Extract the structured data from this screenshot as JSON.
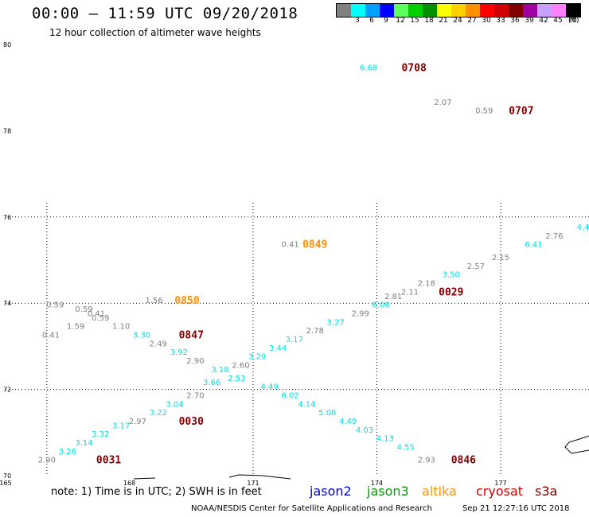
{
  "header": {
    "title": "00:00 – 11:59 UTC 09/20/2018",
    "subtitle": "12 hour collection of altimeter wave heights"
  },
  "legend": {
    "colors": [
      "#808080",
      "#00ffff",
      "#00a0ff",
      "#0000ff",
      "#60ff60",
      "#00d000",
      "#009000",
      "#ffff00",
      "#ffd000",
      "#ff9000",
      "#ff0000",
      "#d00000",
      "#800000",
      "#a000a0",
      "#c8a0ff",
      "#ff80ff",
      "#000000"
    ],
    "labels": [
      "3",
      "6",
      "9",
      "12",
      "15",
      "18",
      "21",
      "24",
      "27",
      "30",
      "33",
      "36",
      "39",
      "42",
      "45",
      "70"
    ],
    "unit": "(ft)"
  },
  "map": {
    "lat_labels": [
      {
        "lat": 80,
        "text": "80"
      },
      {
        "lat": 78,
        "text": "78"
      },
      {
        "lat": 76,
        "text": "76"
      },
      {
        "lat": 74,
        "text": "74"
      },
      {
        "lat": 72,
        "text": "72"
      },
      {
        "lat": 70,
        "text": "70"
      }
    ],
    "lon_labels": [
      {
        "lon": 165,
        "text": "165"
      },
      {
        "lon": 168,
        "text": "168"
      },
      {
        "lon": 171,
        "text": "171"
      },
      {
        "lon": 174,
        "text": "174"
      },
      {
        "lon": 177,
        "text": "177"
      }
    ],
    "colors": {
      "gray": "#808080",
      "cyan": "#00e0e0",
      "orange": "#ff9000",
      "darkred": "#800000"
    }
  },
  "observations": [
    {
      "text": "6.68",
      "lon": 173.8,
      "lat": 79.4,
      "color": "cyan"
    },
    {
      "text": "2.07",
      "lon": 175.6,
      "lat": 78.6,
      "color": "gray"
    },
    {
      "text": "0.59",
      "lon": 176.6,
      "lat": 78.4,
      "color": "gray"
    },
    {
      "text": "4.4",
      "lon": 179.0,
      "lat": 75.7,
      "color": "cyan"
    },
    {
      "text": "2.76",
      "lon": 178.3,
      "lat": 75.5,
      "color": "gray"
    },
    {
      "text": "6.41",
      "lon": 177.8,
      "lat": 75.3,
      "color": "cyan"
    },
    {
      "text": "0.41",
      "lon": 171.9,
      "lat": 75.3,
      "color": "gray"
    },
    {
      "text": "2.15",
      "lon": 177.0,
      "lat": 75.0,
      "color": "gray"
    },
    {
      "text": "2.57",
      "lon": 176.4,
      "lat": 74.8,
      "color": "gray"
    },
    {
      "text": "3.50",
      "lon": 175.8,
      "lat": 74.6,
      "color": "cyan"
    },
    {
      "text": "2.18",
      "lon": 175.2,
      "lat": 74.4,
      "color": "gray"
    },
    {
      "text": "2.11",
      "lon": 174.8,
      "lat": 74.2,
      "color": "gray"
    },
    {
      "text": "2.81",
      "lon": 174.4,
      "lat": 74.1,
      "color": "gray"
    },
    {
      "text": "6.06",
      "lon": 174.1,
      "lat": 73.9,
      "color": "cyan"
    },
    {
      "text": "2.99",
      "lon": 173.6,
      "lat": 73.7,
      "color": "gray"
    },
    {
      "text": "3.27",
      "lon": 173.0,
      "lat": 73.5,
      "color": "cyan"
    },
    {
      "text": "2.78",
      "lon": 172.5,
      "lat": 73.3,
      "color": "gray"
    },
    {
      "text": "3.17",
      "lon": 172.0,
      "lat": 73.1,
      "color": "cyan"
    },
    {
      "text": "3.44",
      "lon": 171.6,
      "lat": 72.9,
      "color": "cyan"
    },
    {
      "text": "3.29",
      "lon": 171.1,
      "lat": 72.7,
      "color": "cyan"
    },
    {
      "text": "2.60",
      "lon": 170.7,
      "lat": 72.5,
      "color": "gray"
    },
    {
      "text": "2.53",
      "lon": 170.6,
      "lat": 72.2,
      "color": "cyan"
    },
    {
      "text": "3.18",
      "lon": 170.2,
      "lat": 72.4,
      "color": "cyan"
    },
    {
      "text": "2.90",
      "lon": 169.6,
      "lat": 72.6,
      "color": "gray"
    },
    {
      "text": "3.92",
      "lon": 169.2,
      "lat": 72.8,
      "color": "cyan"
    },
    {
      "text": "2.49",
      "lon": 168.7,
      "lat": 73.0,
      "color": "gray"
    },
    {
      "text": "3.30",
      "lon": 168.3,
      "lat": 73.2,
      "color": "cyan"
    },
    {
      "text": "1.10",
      "lon": 167.8,
      "lat": 73.4,
      "color": "gray"
    },
    {
      "text": "0.59",
      "lon": 167.3,
      "lat": 73.6,
      "color": "gray"
    },
    {
      "text": "0.41",
      "lon": 167.2,
      "lat": 73.7,
      "color": "gray"
    },
    {
      "text": "0.59",
      "lon": 166.9,
      "lat": 73.8,
      "color": "gray"
    },
    {
      "text": "0.59",
      "lon": 166.2,
      "lat": 73.9,
      "color": "gray"
    },
    {
      "text": "1.59",
      "lon": 166.7,
      "lat": 73.4,
      "color": "gray"
    },
    {
      "text": "0.41",
      "lon": 166.1,
      "lat": 73.2,
      "color": "gray"
    },
    {
      "text": "1.56",
      "lon": 168.6,
      "lat": 74.0,
      "color": "gray"
    },
    {
      "text": "3.66",
      "lon": 170.0,
      "lat": 72.1,
      "color": "cyan"
    },
    {
      "text": "2.70",
      "lon": 169.6,
      "lat": 71.8,
      "color": "gray"
    },
    {
      "text": "3.04",
      "lon": 169.1,
      "lat": 71.6,
      "color": "cyan"
    },
    {
      "text": "3.22",
      "lon": 168.7,
      "lat": 71.4,
      "color": "cyan"
    },
    {
      "text": "2.97",
      "lon": 168.2,
      "lat": 71.2,
      "color": "gray"
    },
    {
      "text": "3.17",
      "lon": 167.8,
      "lat": 71.1,
      "color": "cyan"
    },
    {
      "text": "3.32",
      "lon": 167.3,
      "lat": 70.9,
      "color": "cyan"
    },
    {
      "text": "3.14",
      "lon": 166.9,
      "lat": 70.7,
      "color": "cyan"
    },
    {
      "text": "3.26",
      "lon": 166.5,
      "lat": 70.5,
      "color": "cyan"
    },
    {
      "text": "2.90",
      "lon": 166.0,
      "lat": 70.3,
      "color": "gray"
    },
    {
      "text": "4.49",
      "lon": 171.4,
      "lat": 72.0,
      "color": "cyan"
    },
    {
      "text": "6.02",
      "lon": 171.9,
      "lat": 71.8,
      "color": "cyan"
    },
    {
      "text": "4.14",
      "lon": 172.3,
      "lat": 71.6,
      "color": "cyan"
    },
    {
      "text": "5.08",
      "lon": 172.8,
      "lat": 71.4,
      "color": "cyan"
    },
    {
      "text": "4.49",
      "lon": 173.3,
      "lat": 71.2,
      "color": "cyan"
    },
    {
      "text": "4.03",
      "lon": 173.7,
      "lat": 71.0,
      "color": "cyan"
    },
    {
      "text": "4.13",
      "lon": 174.2,
      "lat": 70.8,
      "color": "cyan"
    },
    {
      "text": "4.55",
      "lon": 174.7,
      "lat": 70.6,
      "color": "cyan"
    },
    {
      "text": "2.93",
      "lon": 175.2,
      "lat": 70.3,
      "color": "gray"
    }
  ],
  "pass_times": [
    {
      "text": "0708",
      "lon": 174.9,
      "lat": 79.4,
      "color": "darkred"
    },
    {
      "text": "0707",
      "lon": 177.5,
      "lat": 78.4,
      "color": "darkred"
    },
    {
      "text": "0849",
      "lon": 172.5,
      "lat": 75.3,
      "color": "orange"
    },
    {
      "text": "0029",
      "lon": 175.8,
      "lat": 74.2,
      "color": "darkred"
    },
    {
      "text": "0850",
      "lon": 169.4,
      "lat": 74.0,
      "color": "orange"
    },
    {
      "text": "0847",
      "lon": 169.5,
      "lat": 73.2,
      "color": "darkred"
    },
    {
      "text": "0030",
      "lon": 169.5,
      "lat": 71.2,
      "color": "darkred"
    },
    {
      "text": "0031",
      "lon": 167.5,
      "lat": 70.3,
      "color": "darkred"
    },
    {
      "text": "0846",
      "lon": 176.1,
      "lat": 70.3,
      "color": "darkred"
    }
  ],
  "footer": {
    "note": "note: 1) Time is in UTC; 2) SWH is in feet",
    "satellites": [
      {
        "name": "jason2",
        "color": "#0000e0"
      },
      {
        "name": "jason3",
        "color": "#00a000"
      },
      {
        "name": "altika",
        "color": "#ff9000"
      },
      {
        "name": "cryosat",
        "color": "#d00000"
      },
      {
        "name": "s3a",
        "color": "#800000"
      }
    ],
    "credit": "NOAA/NESDIS Center for Satellite Applications and Research",
    "timestamp": "Sep 21 12:27:16 UTC 2018"
  }
}
